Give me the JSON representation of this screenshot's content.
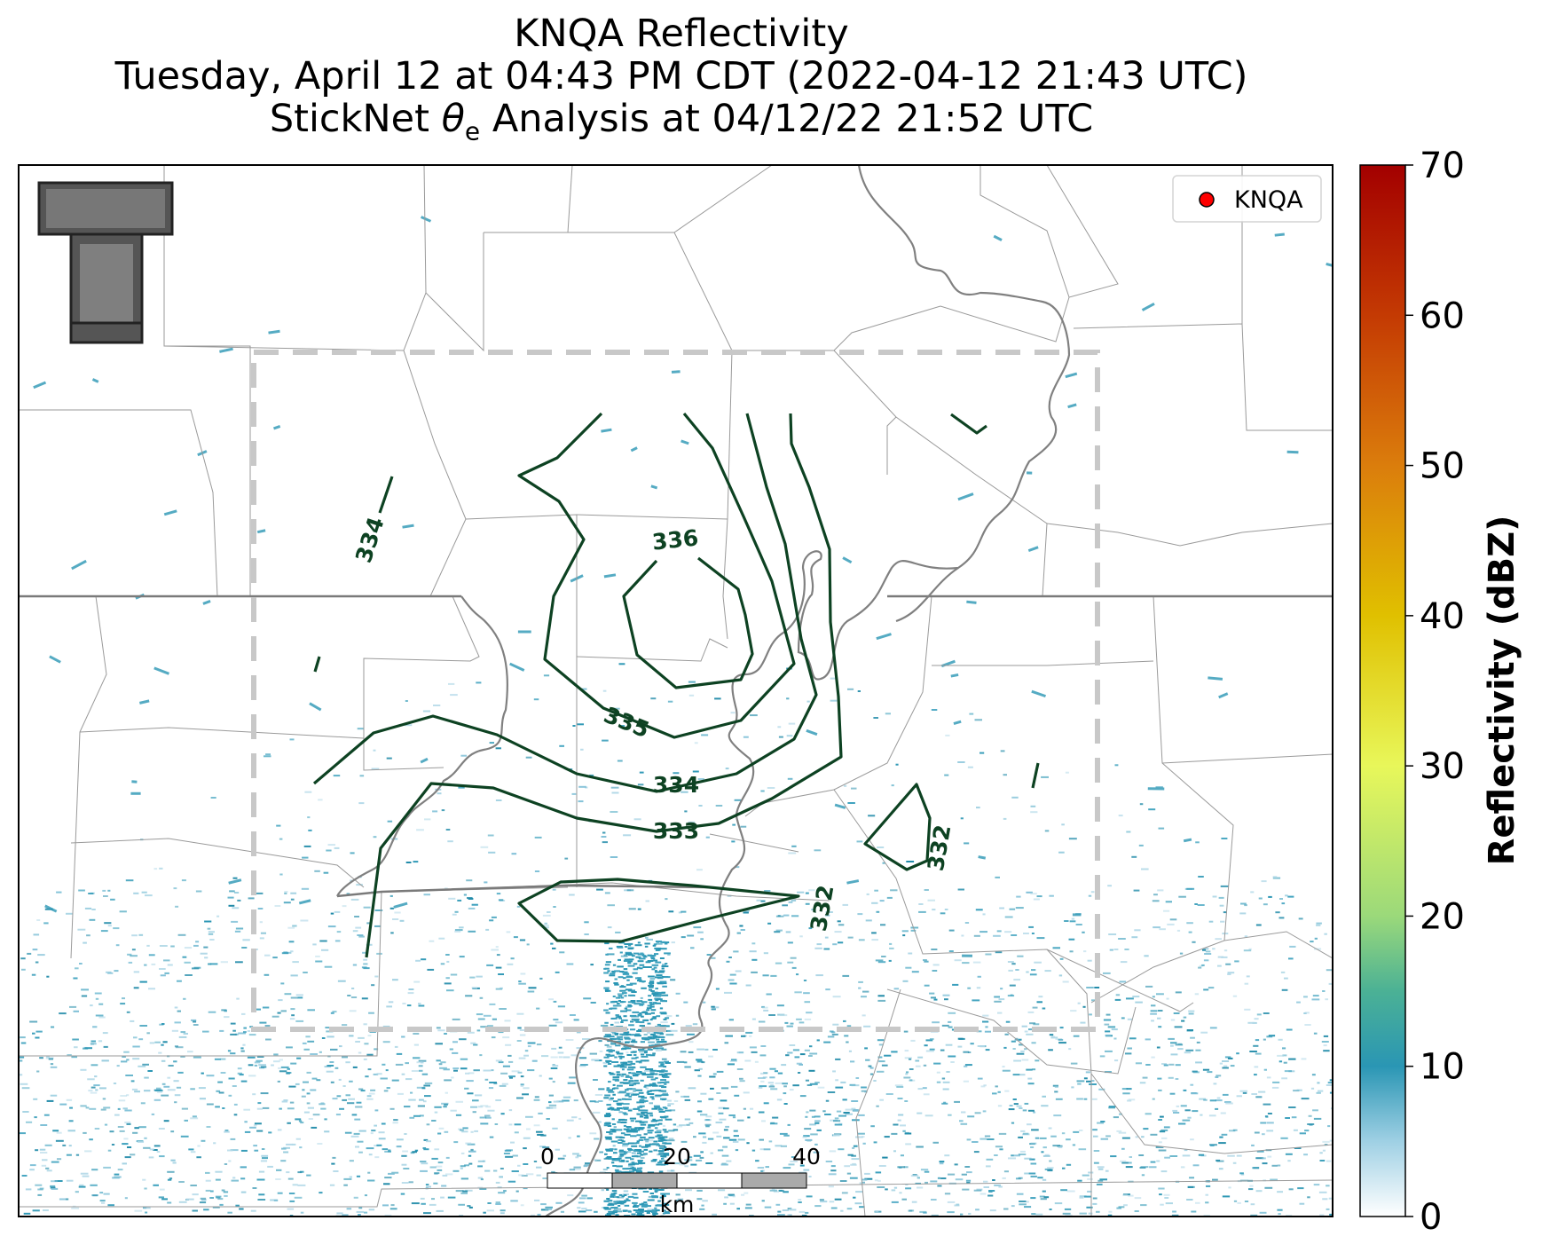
{
  "title": {
    "line1": "KNQA Reflectivity",
    "line2": "Tuesday, April 12 at 04:43 PM CDT (2022-04-12 21:43 UTC)",
    "line3_prefix": "StickNet ",
    "line3_theta": "θ",
    "line3_sub": "e",
    "line3_suffix": " Analysis at 04/12/22 21:52 UTC"
  },
  "legend": {
    "label": "KNQA",
    "marker_color": "#ff0000"
  },
  "logo": {
    "text": "T"
  },
  "colorbar": {
    "label": "Reflectivity (dBZ)",
    "ticks": [
      "0",
      "10",
      "20",
      "30",
      "40",
      "50",
      "60",
      "70"
    ],
    "min": 0,
    "max": 70,
    "stops": [
      {
        "value": 0,
        "color": "#ffffff"
      },
      {
        "value": 5,
        "color": "#9fd0e4"
      },
      {
        "value": 10,
        "color": "#2a96b4"
      },
      {
        "value": 15,
        "color": "#4bb195"
      },
      {
        "value": 20,
        "color": "#9bd97a"
      },
      {
        "value": 30,
        "color": "#e8f75a"
      },
      {
        "value": 40,
        "color": "#e0c000"
      },
      {
        "value": 50,
        "color": "#db7d0c"
      },
      {
        "value": 60,
        "color": "#c43a03"
      },
      {
        "value": 70,
        "color": "#a30000"
      }
    ]
  },
  "scale_bar": {
    "ticks": [
      "0",
      "20",
      "40"
    ],
    "unit": "km"
  },
  "contour_labels": [
    {
      "text": "336"
    },
    {
      "text": "335"
    },
    {
      "text": "334"
    },
    {
      "text": "334"
    },
    {
      "text": "333"
    },
    {
      "text": "332"
    },
    {
      "text": "332"
    }
  ],
  "colors": {
    "contour": "#0d4222",
    "state_border": "#7a7a7a",
    "county_line": "#9a9a9a",
    "river": "#808080",
    "analysis_box": "#c8c8c8",
    "echo": "#2a96b4"
  }
}
